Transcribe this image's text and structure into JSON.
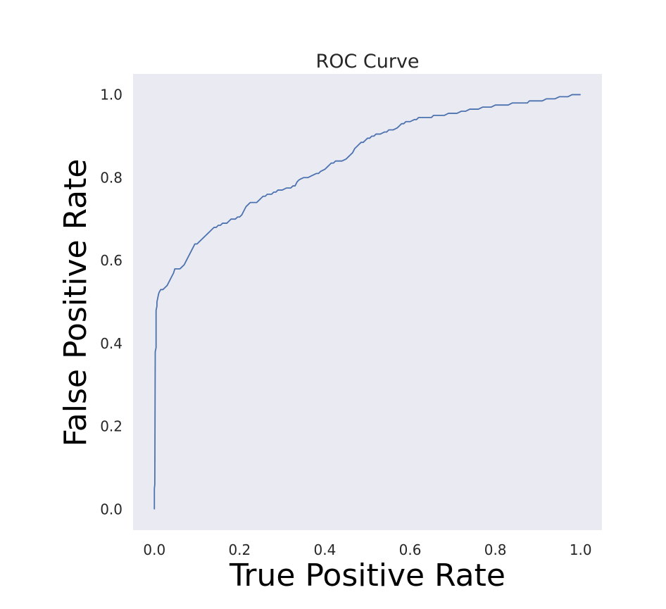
{
  "chart_data": {
    "type": "line",
    "title": "ROC Curve",
    "xlabel": "True Positive Rate",
    "ylabel": "False Positive Rate",
    "xlim": [
      -0.05,
      1.05
    ],
    "ylim": [
      -0.05,
      1.05
    ],
    "xticks": [
      "0.0",
      "0.2",
      "0.4",
      "0.6",
      "0.8",
      "1.0"
    ],
    "yticks": [
      "0.0",
      "0.2",
      "0.4",
      "0.6",
      "0.8",
      "1.0"
    ],
    "grid": false,
    "colors": {
      "plot_background": "#eaeaf2",
      "line": "#4c72b0"
    },
    "series": [
      {
        "x": [
          0.0,
          0.0,
          0.001,
          0.002,
          0.002,
          0.004,
          0.004,
          0.006,
          0.006,
          0.008,
          0.01,
          0.012,
          0.015,
          0.02,
          0.025,
          0.03,
          0.035,
          0.04,
          0.045,
          0.048,
          0.052,
          0.06,
          0.065,
          0.07,
          0.075,
          0.08,
          0.085,
          0.09,
          0.095,
          0.1,
          0.105,
          0.11,
          0.115,
          0.12,
          0.125,
          0.13,
          0.135,
          0.14,
          0.145,
          0.15,
          0.155,
          0.16,
          0.165,
          0.17,
          0.175,
          0.18,
          0.185,
          0.19,
          0.195,
          0.2,
          0.205,
          0.21,
          0.215,
          0.22,
          0.225,
          0.23,
          0.24,
          0.245,
          0.25,
          0.255,
          0.26,
          0.265,
          0.27,
          0.275,
          0.28,
          0.285,
          0.29,
          0.3,
          0.31,
          0.32,
          0.325,
          0.33,
          0.335,
          0.34,
          0.35,
          0.355,
          0.36,
          0.37,
          0.38,
          0.385,
          0.39,
          0.4,
          0.405,
          0.41,
          0.415,
          0.42,
          0.425,
          0.43,
          0.44,
          0.45,
          0.455,
          0.46,
          0.465,
          0.47,
          0.475,
          0.48,
          0.485,
          0.49,
          0.495,
          0.5,
          0.505,
          0.51,
          0.515,
          0.52,
          0.53,
          0.54,
          0.545,
          0.55,
          0.56,
          0.57,
          0.575,
          0.58,
          0.585,
          0.59,
          0.6,
          0.61,
          0.615,
          0.62,
          0.625,
          0.63,
          0.64,
          0.65,
          0.655,
          0.66,
          0.67,
          0.68,
          0.69,
          0.7,
          0.71,
          0.72,
          0.73,
          0.74,
          0.75,
          0.76,
          0.77,
          0.78,
          0.79,
          0.8,
          0.81,
          0.82,
          0.83,
          0.84,
          0.85,
          0.86,
          0.87,
          0.875,
          0.88,
          0.89,
          0.9,
          0.91,
          0.92,
          0.93,
          0.94,
          0.95,
          0.96,
          0.97,
          0.98,
          0.99,
          1.0
        ],
        "y": [
          0.0,
          0.05,
          0.06,
          0.37,
          0.38,
          0.39,
          0.48,
          0.49,
          0.5,
          0.51,
          0.52,
          0.525,
          0.53,
          0.53,
          0.535,
          0.54,
          0.55,
          0.56,
          0.57,
          0.58,
          0.58,
          0.58,
          0.585,
          0.59,
          0.6,
          0.61,
          0.62,
          0.63,
          0.64,
          0.64,
          0.645,
          0.65,
          0.655,
          0.66,
          0.665,
          0.67,
          0.675,
          0.68,
          0.68,
          0.685,
          0.685,
          0.69,
          0.69,
          0.69,
          0.695,
          0.7,
          0.7,
          0.7,
          0.705,
          0.705,
          0.71,
          0.72,
          0.73,
          0.735,
          0.74,
          0.74,
          0.74,
          0.745,
          0.75,
          0.755,
          0.755,
          0.76,
          0.76,
          0.76,
          0.765,
          0.765,
          0.77,
          0.77,
          0.775,
          0.775,
          0.78,
          0.78,
          0.79,
          0.795,
          0.8,
          0.8,
          0.8,
          0.805,
          0.81,
          0.81,
          0.815,
          0.82,
          0.825,
          0.83,
          0.835,
          0.835,
          0.84,
          0.84,
          0.84,
          0.845,
          0.85,
          0.855,
          0.86,
          0.87,
          0.875,
          0.88,
          0.885,
          0.885,
          0.89,
          0.895,
          0.895,
          0.9,
          0.9,
          0.905,
          0.905,
          0.91,
          0.91,
          0.915,
          0.915,
          0.92,
          0.925,
          0.93,
          0.93,
          0.935,
          0.935,
          0.94,
          0.94,
          0.945,
          0.945,
          0.945,
          0.945,
          0.945,
          0.95,
          0.95,
          0.95,
          0.95,
          0.955,
          0.955,
          0.955,
          0.96,
          0.96,
          0.965,
          0.965,
          0.965,
          0.97,
          0.97,
          0.97,
          0.975,
          0.975,
          0.975,
          0.975,
          0.98,
          0.98,
          0.98,
          0.98,
          0.98,
          0.985,
          0.985,
          0.985,
          0.985,
          0.99,
          0.99,
          0.99,
          0.995,
          0.995,
          0.995,
          1.0,
          1.0,
          1.0
        ]
      }
    ]
  }
}
